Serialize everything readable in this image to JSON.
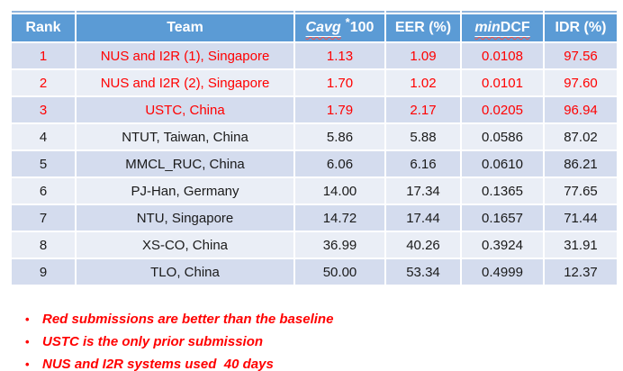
{
  "colors": {
    "page_bg": "#FFFFFF",
    "header_bg": "#5B9BD5",
    "header_text": "#FFFFFF",
    "top_line": "#8FB4DC",
    "row_band_dark": "#D4DCEE",
    "row_band_light": "#EAEEF6",
    "red_text": "#FF0000",
    "dark_text": "#1A1A1A",
    "spellcheck": "#FF4D42"
  },
  "table": {
    "columns": [
      {
        "key": "rank",
        "label": "Rank"
      },
      {
        "key": "team",
        "label": "Team"
      },
      {
        "key": "cavg",
        "label_main": "Cavg",
        "label_sup": "*",
        "label_tail": "100"
      },
      {
        "key": "eer",
        "label": "EER (%)"
      },
      {
        "key": "mindcf",
        "label_italic": "min",
        "label_tail": "DCF"
      },
      {
        "key": "idr",
        "label": "IDR (%)"
      }
    ],
    "rows": [
      {
        "rank": "1",
        "team": "NUS and I2R (1), Singapore",
        "cavg": "1.13",
        "eer": "1.09",
        "mindcf": "0.0108",
        "idr": "97.56",
        "highlight": true
      },
      {
        "rank": "2",
        "team": "NUS and I2R (2), Singapore",
        "cavg": "1.70",
        "eer": "1.02",
        "mindcf": "0.0101",
        "idr": "97.60",
        "highlight": true
      },
      {
        "rank": "3",
        "team": "USTC, China",
        "cavg": "1.79",
        "eer": "2.17",
        "mindcf": "0.0205",
        "idr": "96.94",
        "highlight": true
      },
      {
        "rank": "4",
        "team": "NTUT, Taiwan, China",
        "cavg": "5.86",
        "eer": "5.88",
        "mindcf": "0.0586",
        "idr": "87.02",
        "highlight": false
      },
      {
        "rank": "5",
        "team": "MMCL_RUC, China",
        "cavg": "6.06",
        "eer": "6.16",
        "mindcf": "0.0610",
        "idr": "86.21",
        "highlight": false
      },
      {
        "rank": "6",
        "team": "PJ-Han, Germany",
        "cavg": "14.00",
        "eer": "17.34",
        "mindcf": "0.1365",
        "idr": "77.65",
        "highlight": false
      },
      {
        "rank": "7",
        "team": "NTU, Singapore",
        "cavg": "14.72",
        "eer": "17.44",
        "mindcf": "0.1657",
        "idr": "71.44",
        "highlight": false
      },
      {
        "rank": "8",
        "team": "XS-CO, China",
        "cavg": "36.99",
        "eer": "40.26",
        "mindcf": "0.3924",
        "idr": "31.91",
        "highlight": false
      },
      {
        "rank": "9",
        "team": "TLO, China",
        "cavg": "50.00",
        "eer": "53.34",
        "mindcf": "0.4999",
        "idr": "12.37",
        "highlight": false
      }
    ]
  },
  "notes": {
    "bullet": "•",
    "items": [
      "Red submissions are better than the baseline",
      "USTC is the only prior submission",
      "NUS and I2R systems used  40 days"
    ]
  }
}
